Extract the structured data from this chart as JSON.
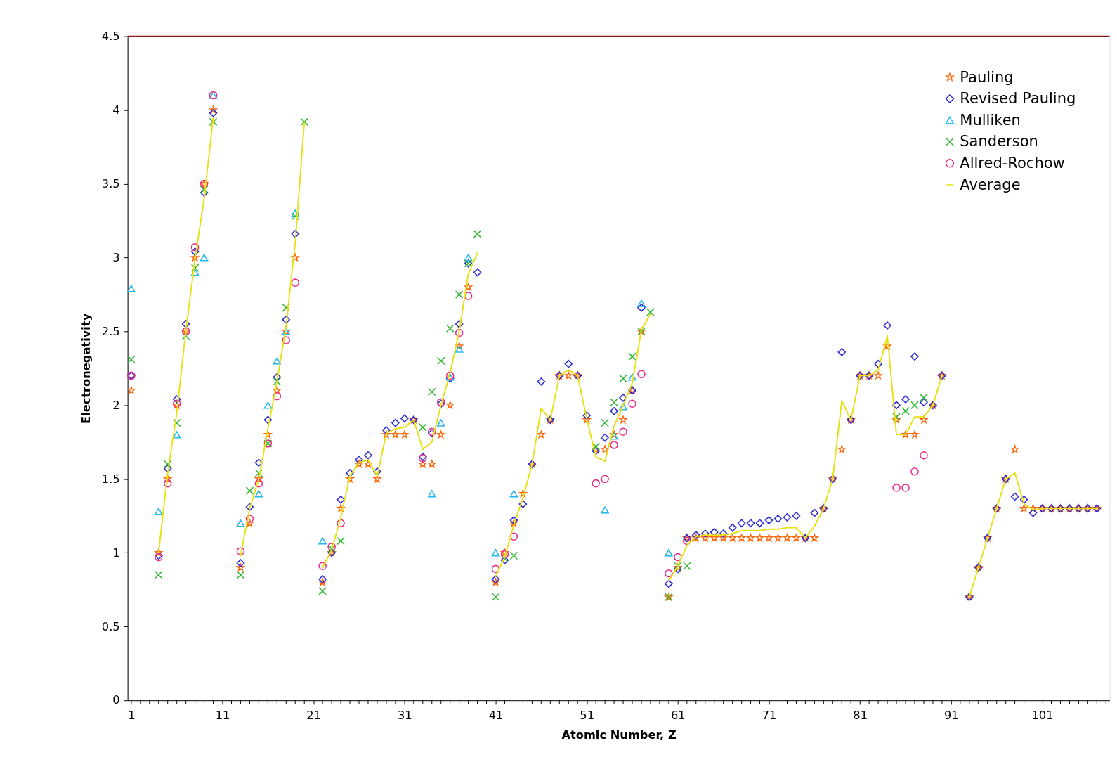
{
  "chart_data": {
    "type": "scatter",
    "xlabel": "Atomic Number, Z",
    "ylabel": "Electronegativity",
    "xlim": [
      0.6,
      108.4
    ],
    "ylim": [
      0,
      4.5
    ],
    "xticks": [
      1,
      {
        "value": 2,
        "label": null
      },
      {
        "value": 3,
        "label": null
      },
      {
        "value": 4,
        "label": null
      },
      {
        "value": 5,
        "label": null
      },
      {
        "value": 6,
        "label": null
      },
      {
        "value": 7,
        "label": null
      },
      {
        "value": 8,
        "label": null
      },
      {
        "value": 9,
        "label": null
      },
      {
        "value": 10,
        "label": null
      },
      11,
      {
        "value": 12,
        "label": null
      },
      {
        "value": 13,
        "label": null
      },
      {
        "value": 14,
        "label": null
      },
      {
        "value": 15,
        "label": null
      },
      {
        "value": 16,
        "label": null
      },
      {
        "value": 17,
        "label": null
      },
      {
        "value": 18,
        "label": null
      },
      {
        "value": 19,
        "label": null
      },
      {
        "value": 20,
        "label": null
      },
      21,
      {
        "value": 22,
        "label": null
      },
      {
        "value": 23,
        "label": null
      },
      {
        "value": 24,
        "label": null
      },
      {
        "value": 25,
        "label": null
      },
      {
        "value": 26,
        "label": null
      },
      {
        "value": 27,
        "label": null
      },
      {
        "value": 28,
        "label": null
      },
      {
        "value": 29,
        "label": null
      },
      {
        "value": 30,
        "label": null
      },
      31,
      {
        "value": 32,
        "label": null
      },
      {
        "value": 33,
        "label": null
      },
      {
        "value": 34,
        "label": null
      },
      {
        "value": 35,
        "label": null
      },
      {
        "value": 36,
        "label": null
      },
      {
        "value": 37,
        "label": null
      },
      {
        "value": 38,
        "label": null
      },
      {
        "value": 39,
        "label": null
      },
      {
        "value": 40,
        "label": null
      },
      41,
      {
        "value": 42,
        "label": null
      },
      {
        "value": 43,
        "label": null
      },
      {
        "value": 44,
        "label": null
      },
      {
        "value": 45,
        "label": null
      },
      {
        "value": 46,
        "label": null
      },
      {
        "value": 47,
        "label": null
      },
      {
        "value": 48,
        "label": null
      },
      {
        "value": 49,
        "label": null
      },
      {
        "value": 50,
        "label": null
      },
      51,
      {
        "value": 52,
        "label": null
      },
      {
        "value": 53,
        "label": null
      },
      {
        "value": 54,
        "label": null
      },
      {
        "value": 55,
        "label": null
      },
      {
        "value": 56,
        "label": null
      },
      {
        "value": 57,
        "label": null
      },
      {
        "value": 58,
        "label": null
      },
      {
        "value": 59,
        "label": null
      },
      {
        "value": 60,
        "label": null
      },
      61,
      {
        "value": 62,
        "label": null
      },
      {
        "value": 63,
        "label": null
      },
      {
        "value": 64,
        "label": null
      },
      {
        "value": 65,
        "label": null
      },
      {
        "value": 66,
        "label": null
      },
      {
        "value": 67,
        "label": null
      },
      {
        "value": 68,
        "label": null
      },
      {
        "value": 69,
        "label": null
      },
      {
        "value": 70,
        "label": null
      },
      71,
      {
        "value": 72,
        "label": null
      },
      {
        "value": 73,
        "label": null
      },
      {
        "value": 74,
        "label": null
      },
      {
        "value": 75,
        "label": null
      },
      {
        "value": 76,
        "label": null
      },
      {
        "value": 77,
        "label": null
      },
      {
        "value": 78,
        "label": null
      },
      {
        "value": 79,
        "label": null
      },
      {
        "value": 80,
        "label": null
      },
      81,
      {
        "value": 82,
        "label": null
      },
      {
        "value": 83,
        "label": null
      },
      {
        "value": 84,
        "label": null
      },
      {
        "value": 85,
        "label": null
      },
      {
        "value": 86,
        "label": null
      },
      {
        "value": 87,
        "label": null
      },
      {
        "value": 88,
        "label": null
      },
      {
        "value": 89,
        "label": null
      },
      {
        "value": 90,
        "label": null
      },
      91,
      {
        "value": 92,
        "label": null
      },
      {
        "value": 93,
        "label": null
      },
      {
        "value": 94,
        "label": null
      },
      {
        "value": 95,
        "label": null
      },
      {
        "value": 96,
        "label": null
      },
      {
        "value": 97,
        "label": null
      },
      {
        "value": 98,
        "label": null
      },
      {
        "value": 99,
        "label": null
      },
      {
        "value": 100,
        "label": null
      },
      101,
      {
        "value": 102,
        "label": null
      },
      {
        "value": 103,
        "label": null
      },
      {
        "value": 104,
        "label": null
      },
      {
        "value": 105,
        "label": null
      },
      {
        "value": 106,
        "label": null
      },
      {
        "value": 107,
        "label": null
      },
      {
        "value": 108,
        "label": null
      }
    ],
    "yticks": [
      0,
      0.5,
      1,
      1.5,
      2,
      2.5,
      3,
      3.5,
      4,
      4.5
    ],
    "grid": false,
    "legend": "top right",
    "ref_lines": [
      {
        "axis": "y",
        "value": 4.5,
        "label": null,
        "color": "#8b1a1a"
      }
    ],
    "series": [
      {
        "name": "Pauling",
        "marker": "star",
        "color": "#ff6a10",
        "x": [
          1,
          4,
          5,
          6,
          7,
          8,
          9,
          10,
          13,
          14,
          15,
          16,
          17,
          18,
          19,
          22,
          23,
          24,
          25,
          26,
          27,
          28,
          29,
          30,
          31,
          32,
          33,
          34,
          35,
          36,
          37,
          38,
          41,
          42,
          43,
          44,
          45,
          46,
          47,
          48,
          49,
          50,
          51,
          52,
          53,
          54,
          55,
          56,
          57,
          60,
          61,
          62,
          63,
          64,
          65,
          66,
          67,
          68,
          69,
          70,
          71,
          72,
          73,
          74,
          75,
          76,
          77,
          78,
          79,
          80,
          81,
          82,
          83,
          84,
          85,
          86,
          87,
          88,
          89,
          90,
          93,
          94,
          95,
          96,
          97,
          98,
          99,
          100,
          101,
          102,
          103,
          104,
          105,
          106,
          107
        ],
        "values": [
          2.1,
          1.0,
          1.5,
          2.0,
          2.5,
          3.0,
          3.5,
          4.0,
          0.9,
          1.2,
          1.5,
          1.8,
          2.1,
          2.5,
          3.0,
          0.8,
          1.0,
          1.3,
          1.5,
          1.6,
          1.6,
          1.5,
          1.8,
          1.8,
          1.8,
          1.9,
          1.6,
          1.6,
          1.8,
          2.0,
          2.4,
          2.8,
          0.8,
          1.0,
          1.2,
          1.4,
          1.6,
          1.8,
          1.9,
          2.2,
          2.2,
          2.2,
          1.9,
          1.7,
          1.7,
          1.8,
          1.9,
          2.1,
          2.5,
          0.7,
          0.9,
          1.1,
          1.1,
          1.1,
          1.1,
          1.1,
          1.1,
          1.1,
          1.1,
          1.1,
          1.1,
          1.1,
          1.1,
          1.1,
          1.1,
          1.1,
          1.3,
          1.5,
          1.7,
          1.9,
          2.2,
          2.2,
          2.2,
          2.4,
          1.9,
          1.8,
          1.8,
          1.9,
          2.0,
          2.2,
          0.7,
          0.9,
          1.1,
          1.3,
          1.5,
          1.7,
          1.3,
          1.3,
          1.3,
          1.3,
          1.3,
          1.3,
          1.3,
          1.3,
          1.3
        ]
      },
      {
        "name": "Revised Pauling",
        "marker": "diamond",
        "color": "#2a2ad8",
        "x": [
          1,
          4,
          5,
          6,
          7,
          8,
          9,
          10,
          13,
          14,
          15,
          16,
          17,
          18,
          19,
          22,
          23,
          24,
          25,
          26,
          27,
          28,
          29,
          30,
          31,
          32,
          33,
          34,
          35,
          36,
          37,
          38,
          39,
          41,
          42,
          43,
          44,
          45,
          46,
          47,
          48,
          49,
          50,
          51,
          52,
          53,
          54,
          55,
          56,
          57,
          60,
          61,
          62,
          63,
          64,
          65,
          66,
          67,
          68,
          69,
          70,
          71,
          72,
          73,
          74,
          75,
          76,
          77,
          78,
          79,
          80,
          81,
          82,
          83,
          84,
          85,
          86,
          87,
          88,
          89,
          90,
          93,
          94,
          95,
          96,
          97,
          98,
          99,
          100,
          101,
          102,
          103,
          104,
          105,
          106,
          107
        ],
        "values": [
          2.2,
          0.98,
          1.57,
          2.04,
          2.55,
          3.04,
          3.44,
          3.98,
          0.93,
          1.31,
          1.61,
          1.9,
          2.19,
          2.58,
          3.16,
          0.82,
          1.0,
          1.36,
          1.54,
          1.63,
          1.66,
          1.55,
          1.83,
          1.88,
          1.91,
          1.9,
          1.65,
          1.81,
          2.01,
          2.18,
          2.55,
          2.96,
          2.9,
          0.82,
          0.95,
          1.22,
          1.33,
          1.6,
          2.16,
          1.9,
          2.2,
          2.28,
          2.2,
          1.93,
          1.69,
          1.78,
          1.96,
          2.05,
          2.1,
          2.66,
          0.79,
          0.89,
          1.1,
          1.12,
          1.13,
          1.14,
          1.13,
          1.17,
          1.2,
          1.2,
          1.2,
          1.22,
          1.23,
          1.24,
          1.25,
          1.1,
          1.27,
          1.3,
          1.5,
          2.36,
          1.9,
          2.2,
          2.2,
          2.28,
          2.54,
          2.0,
          2.04,
          2.33,
          2.02,
          2.0,
          2.2,
          0.7,
          0.9,
          1.1,
          1.3,
          1.5,
          1.38,
          1.36,
          1.27,
          1.3,
          1.3,
          1.3,
          1.3,
          1.3,
          1.3,
          1.3
        ]
      },
      {
        "name": "Mulliken",
        "marker": "triangle",
        "color": "#22b8ee",
        "x": [
          1,
          4,
          6,
          8,
          9,
          10,
          13,
          15,
          16,
          17,
          18,
          19,
          22,
          34,
          35,
          36,
          37,
          38,
          41,
          43,
          53,
          54,
          55,
          56,
          57,
          60
        ],
        "values": [
          2.79,
          1.28,
          1.8,
          2.9,
          3.0,
          4.1,
          1.2,
          1.4,
          2.0,
          2.3,
          2.5,
          3.3,
          1.08,
          1.4,
          1.88,
          2.19,
          2.38,
          3.0,
          1.0,
          1.4,
          1.29,
          1.79,
          1.99,
          2.19,
          2.69,
          1.0
        ]
      },
      {
        "name": "Sanderson",
        "marker": "cross",
        "color": "#33b833",
        "x": [
          1,
          4,
          5,
          6,
          7,
          8,
          9,
          10,
          13,
          14,
          15,
          16,
          17,
          18,
          19,
          20,
          22,
          23,
          24,
          33,
          34,
          35,
          36,
          37,
          38,
          39,
          41,
          42,
          43,
          52,
          53,
          54,
          55,
          56,
          57,
          58,
          60,
          61,
          62,
          85,
          86,
          87,
          88
        ],
        "values": [
          2.31,
          0.85,
          1.6,
          1.88,
          2.47,
          2.93,
          3.46,
          3.92,
          0.85,
          1.42,
          1.54,
          1.74,
          2.16,
          2.66,
          3.28,
          3.92,
          0.74,
          1.03,
          1.08,
          1.85,
          2.09,
          2.3,
          2.52,
          2.75,
          2.96,
          3.16,
          0.7,
          0.96,
          0.98,
          1.72,
          1.88,
          2.02,
          2.18,
          2.33,
          2.5,
          2.63,
          0.7,
          0.91,
          0.91,
          1.92,
          1.96,
          2.0,
          2.05
        ]
      },
      {
        "name": "Allred-Rochow",
        "marker": "circle",
        "color": "#ee2a8a",
        "x": [
          1,
          4,
          5,
          6,
          7,
          8,
          9,
          10,
          13,
          14,
          15,
          16,
          17,
          18,
          19,
          22,
          23,
          24,
          33,
          34,
          35,
          36,
          37,
          38,
          41,
          42,
          43,
          52,
          53,
          54,
          55,
          56,
          57,
          60,
          61,
          62,
          85,
          86,
          87,
          88
        ],
        "values": [
          2.2,
          0.97,
          1.47,
          2.01,
          2.5,
          3.07,
          3.5,
          4.1,
          1.01,
          1.23,
          1.47,
          1.74,
          2.06,
          2.44,
          2.83,
          0.91,
          1.04,
          1.2,
          1.64,
          1.82,
          2.02,
          2.2,
          2.49,
          2.74,
          0.89,
          0.99,
          1.11,
          1.47,
          1.5,
          1.73,
          1.82,
          2.01,
          2.21,
          0.86,
          0.97,
          1.08,
          1.44,
          1.44,
          1.55,
          1.66
        ]
      },
      {
        "name": "Average",
        "type": "line",
        "marker": "none",
        "line_style": "solid",
        "color": "#e8e010",
        "x": [
          4,
          5,
          6,
          7,
          8,
          9,
          10,
          11,
          13,
          14,
          15,
          16,
          17,
          18,
          19,
          20,
          21,
          22,
          23,
          24,
          25,
          26,
          27,
          28,
          29,
          30,
          31,
          32,
          33,
          34,
          35,
          36,
          37,
          38,
          39,
          40,
          41,
          42,
          43,
          44,
          45,
          46,
          47,
          48,
          49,
          50,
          51,
          52,
          53,
          54,
          55,
          56,
          57,
          58,
          59,
          60,
          61,
          62,
          63,
          64,
          65,
          66,
          67,
          68,
          69,
          70,
          71,
          72,
          73,
          74,
          75,
          76,
          77,
          78,
          79,
          80,
          81,
          82,
          83,
          84,
          85,
          86,
          87,
          88,
          89,
          90,
          91,
          93,
          94,
          95,
          96,
          97,
          98,
          99,
          100,
          101,
          102,
          103,
          104,
          105,
          106,
          107
        ],
        "values": [
          1.0,
          1.54,
          1.95,
          2.51,
          2.99,
          3.4,
          3.95,
          null,
          0.98,
          1.3,
          1.5,
          1.84,
          2.16,
          2.54,
          3.1,
          3.92,
          null,
          0.9,
          1.02,
          1.24,
          1.52,
          1.61,
          1.63,
          1.52,
          1.81,
          1.84,
          1.85,
          1.9,
          1.7,
          1.75,
          2.0,
          2.22,
          2.5,
          2.89,
          3.03,
          null,
          0.84,
          0.97,
          1.19,
          1.37,
          1.6,
          1.98,
          1.9,
          2.2,
          2.24,
          2.2,
          1.91,
          1.65,
          1.62,
          1.86,
          2.0,
          2.15,
          2.51,
          2.62,
          null,
          0.81,
          0.91,
          1.05,
          1.11,
          1.12,
          1.12,
          1.12,
          1.13,
          1.15,
          1.15,
          1.15,
          1.16,
          1.16,
          1.17,
          1.17,
          1.1,
          1.18,
          1.3,
          1.5,
          2.03,
          1.9,
          2.2,
          2.2,
          2.24,
          2.47,
          1.8,
          1.8,
          1.92,
          1.92,
          2.0,
          2.2,
          null,
          0.7,
          0.9,
          1.1,
          1.3,
          1.5,
          1.54,
          1.33,
          1.29,
          1.3,
          1.3,
          1.3,
          1.3,
          1.3,
          1.3,
          1.3
        ]
      }
    ]
  }
}
